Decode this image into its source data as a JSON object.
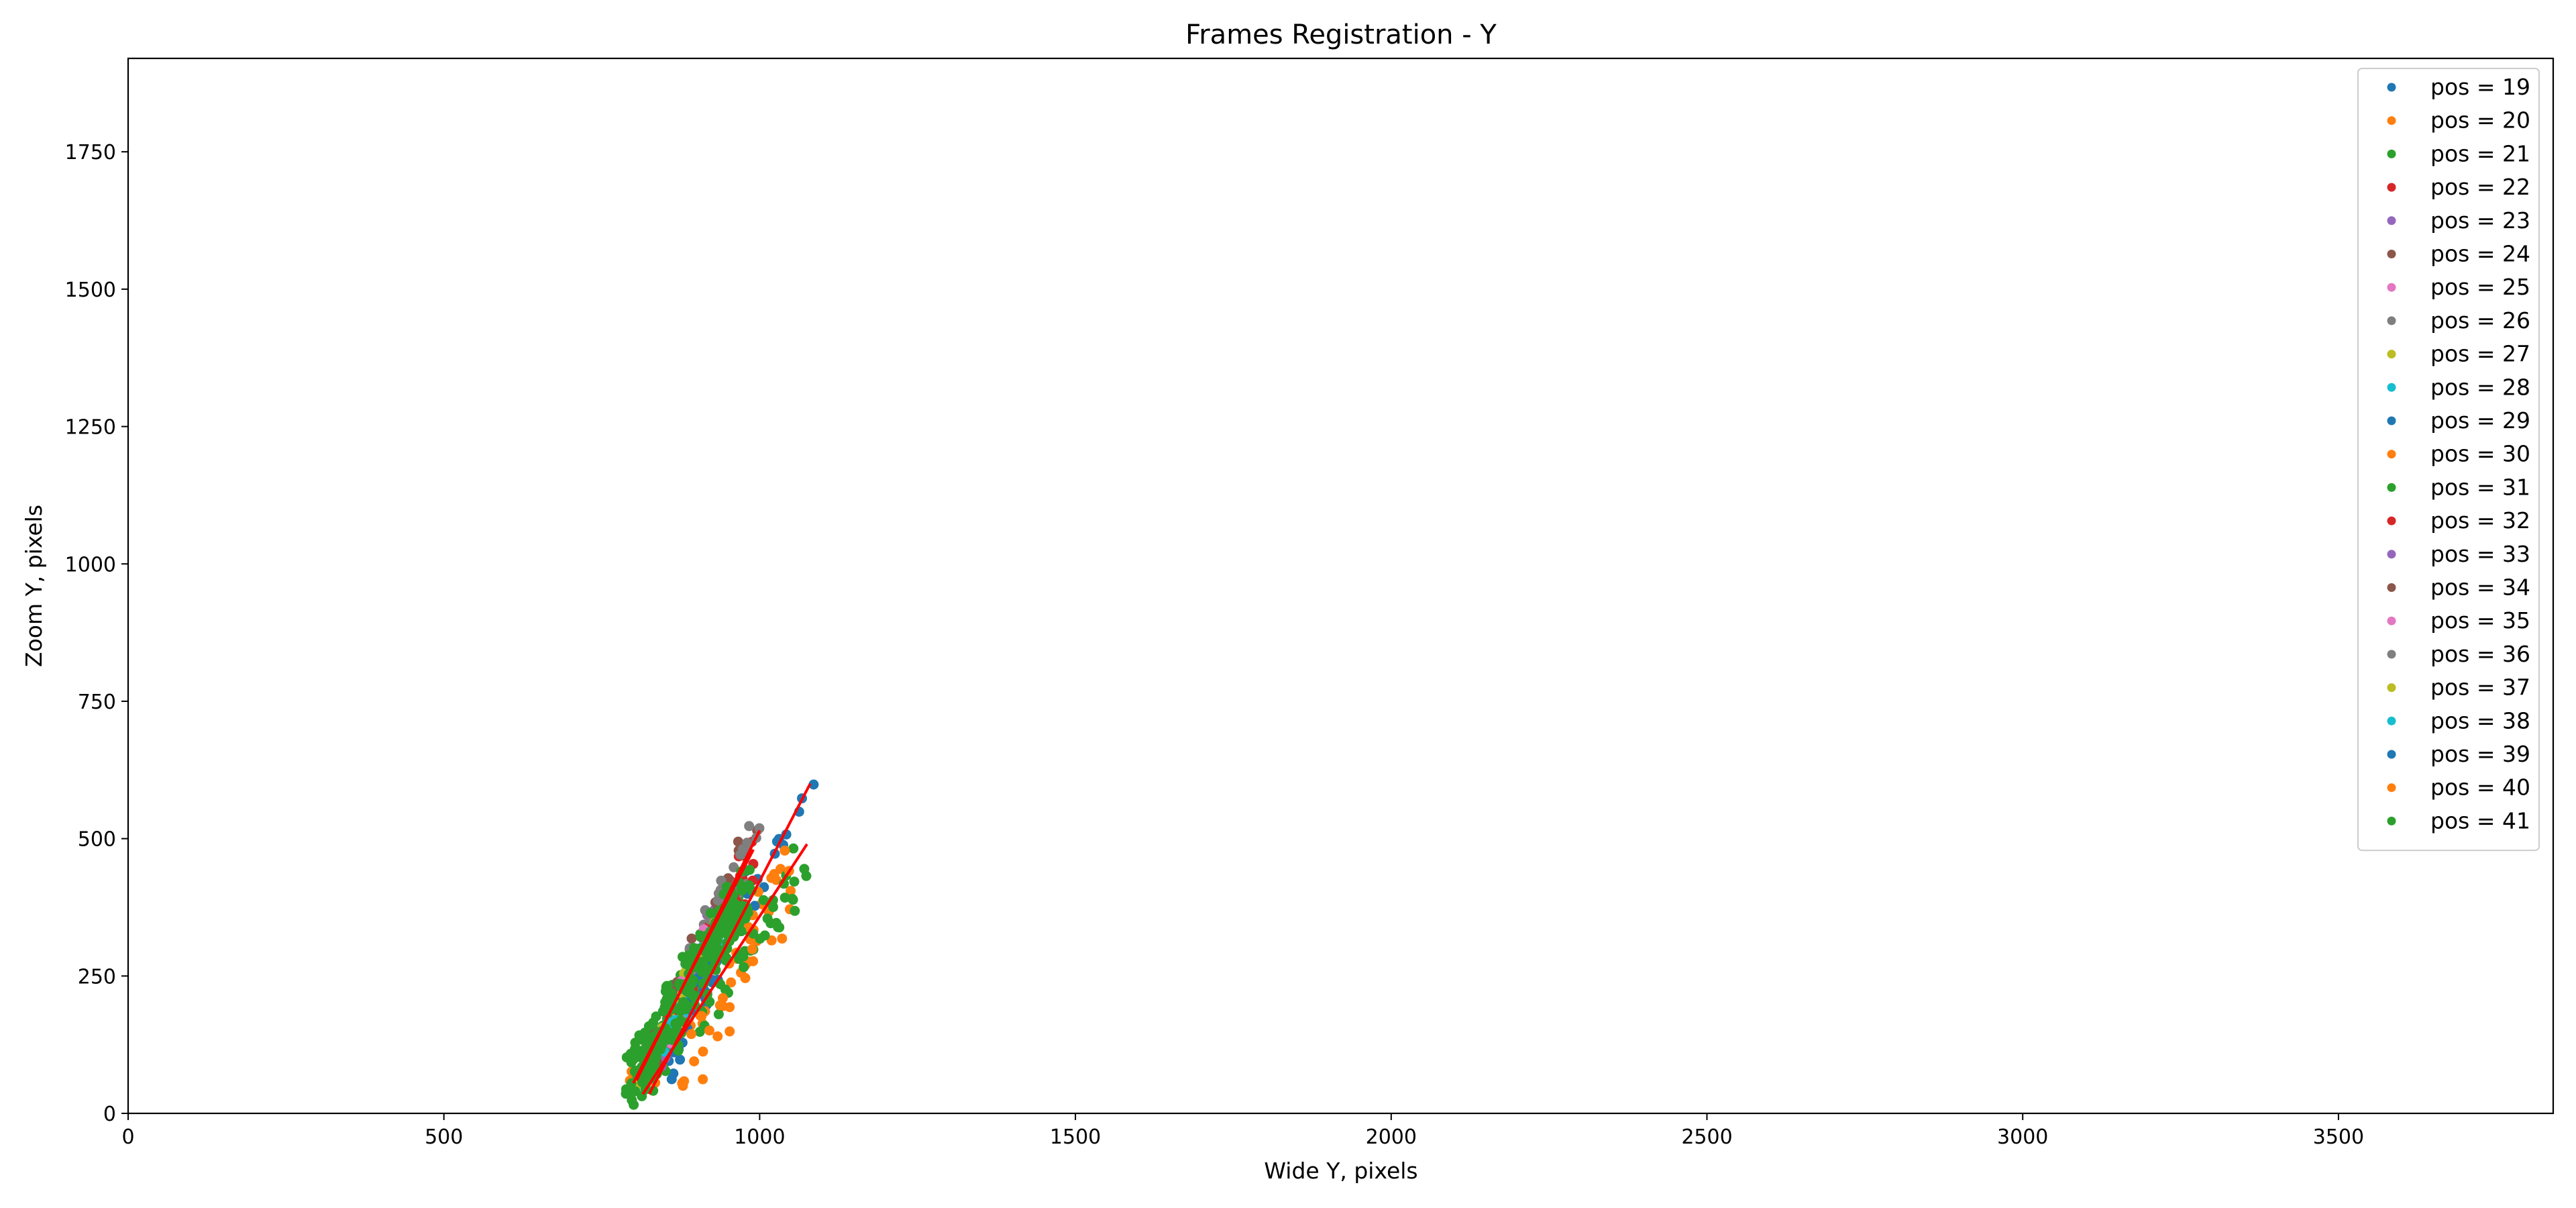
{
  "chart_data": {
    "type": "scatter",
    "title": "Frames Registration - Y",
    "xlabel": "Wide Y, pixels",
    "ylabel": "Zoom Y, pixels",
    "xlim": [
      0,
      3840
    ],
    "ylim": [
      0,
      1920
    ],
    "xticks": [
      "0",
      "500",
      "1000",
      "1500",
      "2000",
      "2500",
      "3000",
      "3500"
    ],
    "yticks": [
      "0",
      "250",
      "500",
      "750",
      "1000",
      "1250",
      "1500",
      "1750"
    ],
    "grid": false,
    "legend_position": "top-right",
    "series": [
      {
        "name": "pos = 19",
        "color": "#1f77b4",
        "cluster": {
          "x0": 850,
          "y0": 120,
          "x1": 975,
          "y1": 430,
          "spread": 12,
          "n": 30
        }
      },
      {
        "name": "pos = 20",
        "color": "#ff7f0e",
        "cluster": {
          "x0": 800,
          "y0": 55,
          "x1": 1060,
          "y1": 465,
          "spread": 14,
          "n": 30
        }
      },
      {
        "name": "pos = 21",
        "color": "#2ca02c",
        "cluster": {
          "x0": 800,
          "y0": 60,
          "x1": 960,
          "y1": 400,
          "spread": 14,
          "n": 90
        }
      },
      {
        "name": "pos = 22",
        "color": "#d62728",
        "cluster": {
          "x0": 820,
          "y0": 90,
          "x1": 990,
          "y1": 480,
          "spread": 10,
          "n": 25
        }
      },
      {
        "name": "pos = 23",
        "color": "#9467bd",
        "cluster": {
          "x0": 830,
          "y0": 100,
          "x1": 960,
          "y1": 420,
          "spread": 10,
          "n": 20
        }
      },
      {
        "name": "pos = 24",
        "color": "#8c564b",
        "cluster": {
          "x0": 800,
          "y0": 60,
          "x1": 990,
          "y1": 500,
          "spread": 10,
          "n": 20
        }
      },
      {
        "name": "pos = 25",
        "color": "#e377c2",
        "cluster": {
          "x0": 840,
          "y0": 110,
          "x1": 950,
          "y1": 390,
          "spread": 10,
          "n": 15
        }
      },
      {
        "name": "pos = 26",
        "color": "#7f7f7f",
        "cluster": {
          "x0": 900,
          "y0": 300,
          "x1": 1000,
          "y1": 510,
          "spread": 12,
          "n": 25
        }
      },
      {
        "name": "pos = 27",
        "color": "#bcbd22",
        "cluster": {
          "x0": 820,
          "y0": 80,
          "x1": 960,
          "y1": 420,
          "spread": 10,
          "n": 15
        }
      },
      {
        "name": "pos = 28",
        "color": "#17becf",
        "cluster": {
          "x0": 830,
          "y0": 90,
          "x1": 960,
          "y1": 400,
          "spread": 10,
          "n": 15
        }
      },
      {
        "name": "pos = 29",
        "color": "#1f77b4",
        "cluster": {
          "x0": 850,
          "y0": 70,
          "x1": 1085,
          "y1": 610,
          "spread": 8,
          "n": 25
        }
      },
      {
        "name": "pos = 30",
        "color": "#ff7f0e",
        "cluster": {
          "x0": 880,
          "y0": 50,
          "x1": 1050,
          "y1": 440,
          "spread": 20,
          "n": 25
        }
      },
      {
        "name": "pos = 31",
        "color": "#2ca02c",
        "cluster": {
          "x0": 830,
          "y0": 80,
          "x1": 1075,
          "y1": 460,
          "spread": 16,
          "n": 60
        }
      },
      {
        "name": "pos = 32",
        "color": "#d62728",
        "cluster": {
          "x0": 820,
          "y0": 80,
          "x1": 1000,
          "y1": 470,
          "spread": 10,
          "n": 15
        }
      },
      {
        "name": "pos = 33",
        "color": "#9467bd",
        "cluster": {
          "x0": 840,
          "y0": 110,
          "x1": 960,
          "y1": 410,
          "spread": 10,
          "n": 12
        }
      },
      {
        "name": "pos = 34",
        "color": "#8c564b",
        "cluster": {
          "x0": 810,
          "y0": 70,
          "x1": 960,
          "y1": 430,
          "spread": 10,
          "n": 12
        }
      },
      {
        "name": "pos = 35",
        "color": "#e377c2",
        "cluster": {
          "x0": 840,
          "y0": 110,
          "x1": 950,
          "y1": 380,
          "spread": 10,
          "n": 10
        }
      },
      {
        "name": "pos = 36",
        "color": "#7f7f7f",
        "cluster": {
          "x0": 910,
          "y0": 320,
          "x1": 990,
          "y1": 505,
          "spread": 10,
          "n": 15
        }
      },
      {
        "name": "pos = 37",
        "color": "#bcbd22",
        "cluster": {
          "x0": 830,
          "y0": 90,
          "x1": 950,
          "y1": 400,
          "spread": 10,
          "n": 10
        }
      },
      {
        "name": "pos = 38",
        "color": "#17becf",
        "cluster": {
          "x0": 840,
          "y0": 100,
          "x1": 950,
          "y1": 390,
          "spread": 10,
          "n": 10
        }
      },
      {
        "name": "pos = 39",
        "color": "#1f77b4",
        "cluster": {
          "x0": 870,
          "y0": 80,
          "x1": 960,
          "y1": 420,
          "spread": 10,
          "n": 15
        }
      },
      {
        "name": "pos = 40",
        "color": "#ff7f0e",
        "cluster": {
          "x0": 870,
          "y0": 60,
          "x1": 1060,
          "y1": 470,
          "spread": 14,
          "n": 15
        }
      },
      {
        "name": "pos = 41",
        "color": "#2ca02c",
        "cluster": {
          "x0": 800,
          "y0": 50,
          "x1": 980,
          "y1": 420,
          "spread": 16,
          "n": 220
        }
      }
    ],
    "fit_lines": [
      {
        "color": "#ff0000",
        "x": [
          815,
          1075
        ],
        "y": [
          35,
          490
        ]
      },
      {
        "color": "#ff0000",
        "x": [
          825,
          1080
        ],
        "y": [
          35,
          600
        ]
      },
      {
        "color": "#ff0000",
        "x": [
          805,
          1000
        ],
        "y": [
          60,
          515
        ]
      },
      {
        "color": "#ff0000",
        "x": [
          800,
          990
        ],
        "y": [
          55,
          480
        ]
      }
    ]
  }
}
